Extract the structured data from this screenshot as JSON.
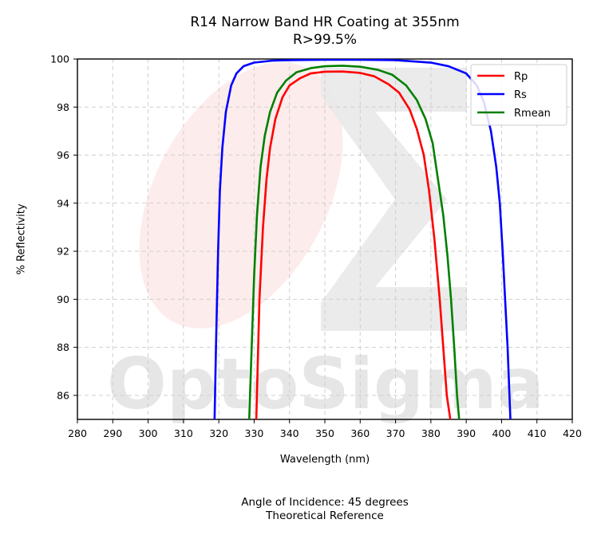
{
  "chart_data": {
    "type": "line",
    "title": "R14 Narrow Band HR Coating at 355nm",
    "subtitle": "R>99.5%",
    "xlabel": "Wavelength (nm)",
    "ylabel": "% Reflectivity",
    "xlim": [
      280,
      420
    ],
    "ylim": [
      85,
      100
    ],
    "xticks": [
      280,
      290,
      300,
      310,
      320,
      330,
      340,
      350,
      360,
      370,
      380,
      390,
      400,
      410,
      420
    ],
    "yticks": [
      86,
      88,
      90,
      92,
      94,
      96,
      98,
      100
    ],
    "grid": true,
    "legend_position": "top-right",
    "series": [
      {
        "name": "Rp",
        "color": "#ff0000",
        "x": [
          330.6,
          331.5,
          332.5,
          333.5,
          334.5,
          336,
          338,
          340,
          343,
          346,
          350,
          355,
          360,
          364,
          368,
          371,
          374,
          376,
          378,
          379.5,
          381,
          382.5,
          383.5,
          384.5,
          385.5
        ],
        "y": [
          85,
          90,
          93,
          95,
          96.3,
          97.5,
          98.4,
          98.9,
          99.2,
          99.4,
          99.47,
          99.48,
          99.42,
          99.28,
          98.95,
          98.6,
          97.9,
          97.1,
          96.0,
          94.5,
          92.5,
          90.0,
          88.0,
          86.0,
          85
        ]
      },
      {
        "name": "Rs",
        "color": "#0000ff",
        "x": [
          318.8,
          319.2,
          319.8,
          320.3,
          321,
          322,
          323.5,
          325,
          327,
          330,
          335,
          340,
          350,
          360,
          370,
          380,
          385,
          390,
          393,
          395,
          397,
          398.5,
          399.5,
          400.3,
          401,
          401.7,
          402.5
        ],
        "y": [
          85,
          88,
          92,
          94.5,
          96.3,
          97.8,
          98.9,
          99.4,
          99.7,
          99.85,
          99.93,
          99.95,
          99.97,
          99.97,
          99.95,
          99.85,
          99.7,
          99.4,
          98.9,
          98.2,
          97.0,
          95.5,
          94.0,
          92.0,
          90.0,
          88.0,
          85
        ]
      },
      {
        "name": "Rmean",
        "color": "#008000",
        "x": [
          328.6,
          329.3,
          330,
          330.8,
          331.8,
          333,
          334.5,
          336.5,
          339,
          342,
          346,
          350,
          355,
          360,
          365,
          369,
          373,
          376,
          378.5,
          380.5,
          382,
          383.5,
          384.7,
          385.7,
          386.6,
          387.4,
          388
        ],
        "y": [
          85,
          88,
          91,
          93.5,
          95.5,
          96.8,
          97.8,
          98.6,
          99.1,
          99.45,
          99.62,
          99.7,
          99.72,
          99.68,
          99.55,
          99.35,
          98.9,
          98.3,
          97.5,
          96.5,
          95.0,
          93.5,
          91.8,
          90.0,
          88.0,
          86.0,
          85
        ]
      }
    ]
  },
  "watermark": {
    "text": "OptoSigma"
  },
  "footer": {
    "line1": "Angle of Incidence: 45 degrees",
    "line2": "Theoretical Reference"
  }
}
